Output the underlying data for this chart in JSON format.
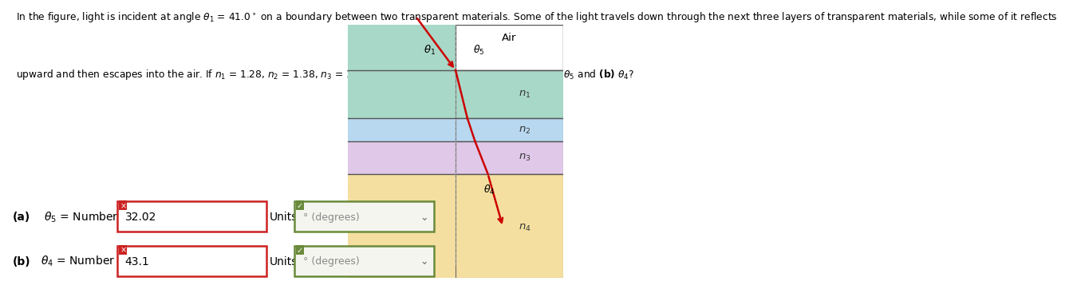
{
  "problem_text_line1": "In the figure, light is incident at angle θ₁ = 41.0° on a boundary between two transparent materials. Some of the light travels down through the next three layers of transparent materials, while some of it reflects",
  "problem_text_line2": "upward and then escapes into the air. If n₁ = 1.28, n₂ = 1.38, n₃ = 1.30 and n₄ = 1.43, what is the value of (a) θ5 and (b) θ4?",
  "diagram": {
    "layer_colors": [
      "#a8d8c8",
      "#b8d8f0",
      "#e0c8e8",
      "#f5dfa0"
    ],
    "layer_labels": [
      "n₁",
      "n₂",
      "n₃",
      "n₄"
    ],
    "air_color": "#ffffff",
    "boundary_color": "#666666",
    "ray_color": "#cc0000",
    "dashed_color": "#999999"
  },
  "answer_a_value": "32.02",
  "answer_b_value": "43.1",
  "units_value": "° (degrees)"
}
